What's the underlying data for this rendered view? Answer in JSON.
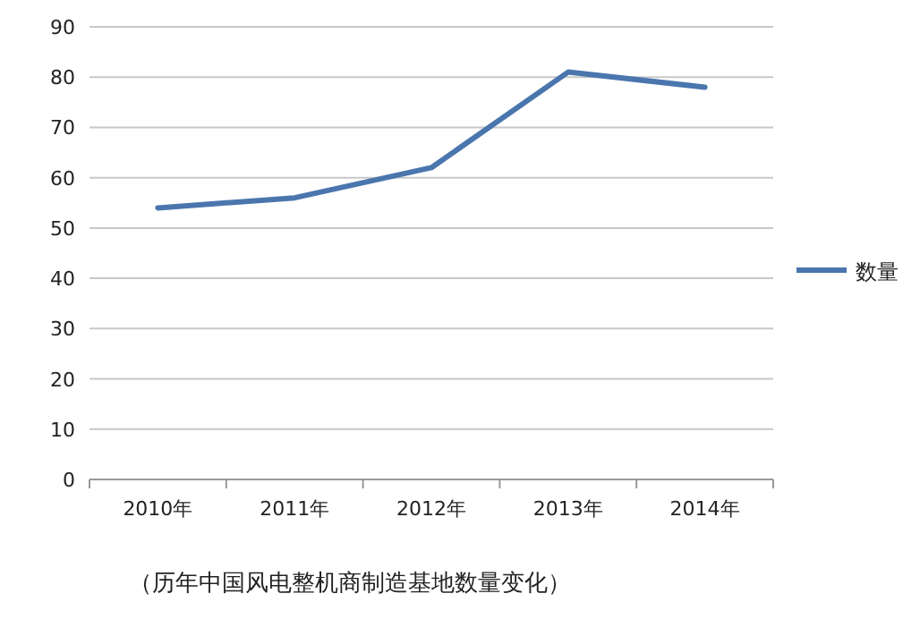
{
  "chart_data": {
    "type": "line",
    "categories": [
      "2010年",
      "2011年",
      "2012年",
      "2013年",
      "2014年"
    ],
    "series": [
      {
        "name": "数量",
        "color": "#4a76ad",
        "values": [
          54,
          56,
          62,
          81,
          78
        ]
      }
    ],
    "ylim": [
      0,
      90
    ],
    "yticks": [
      0,
      10,
      20,
      30,
      40,
      50,
      60,
      70,
      80,
      90
    ],
    "grid": "y",
    "legend": "right",
    "marker": "none",
    "line_style": "solid",
    "annotations": [
      "（历年中国风电整机商制造基地数量变化）"
    ]
  }
}
